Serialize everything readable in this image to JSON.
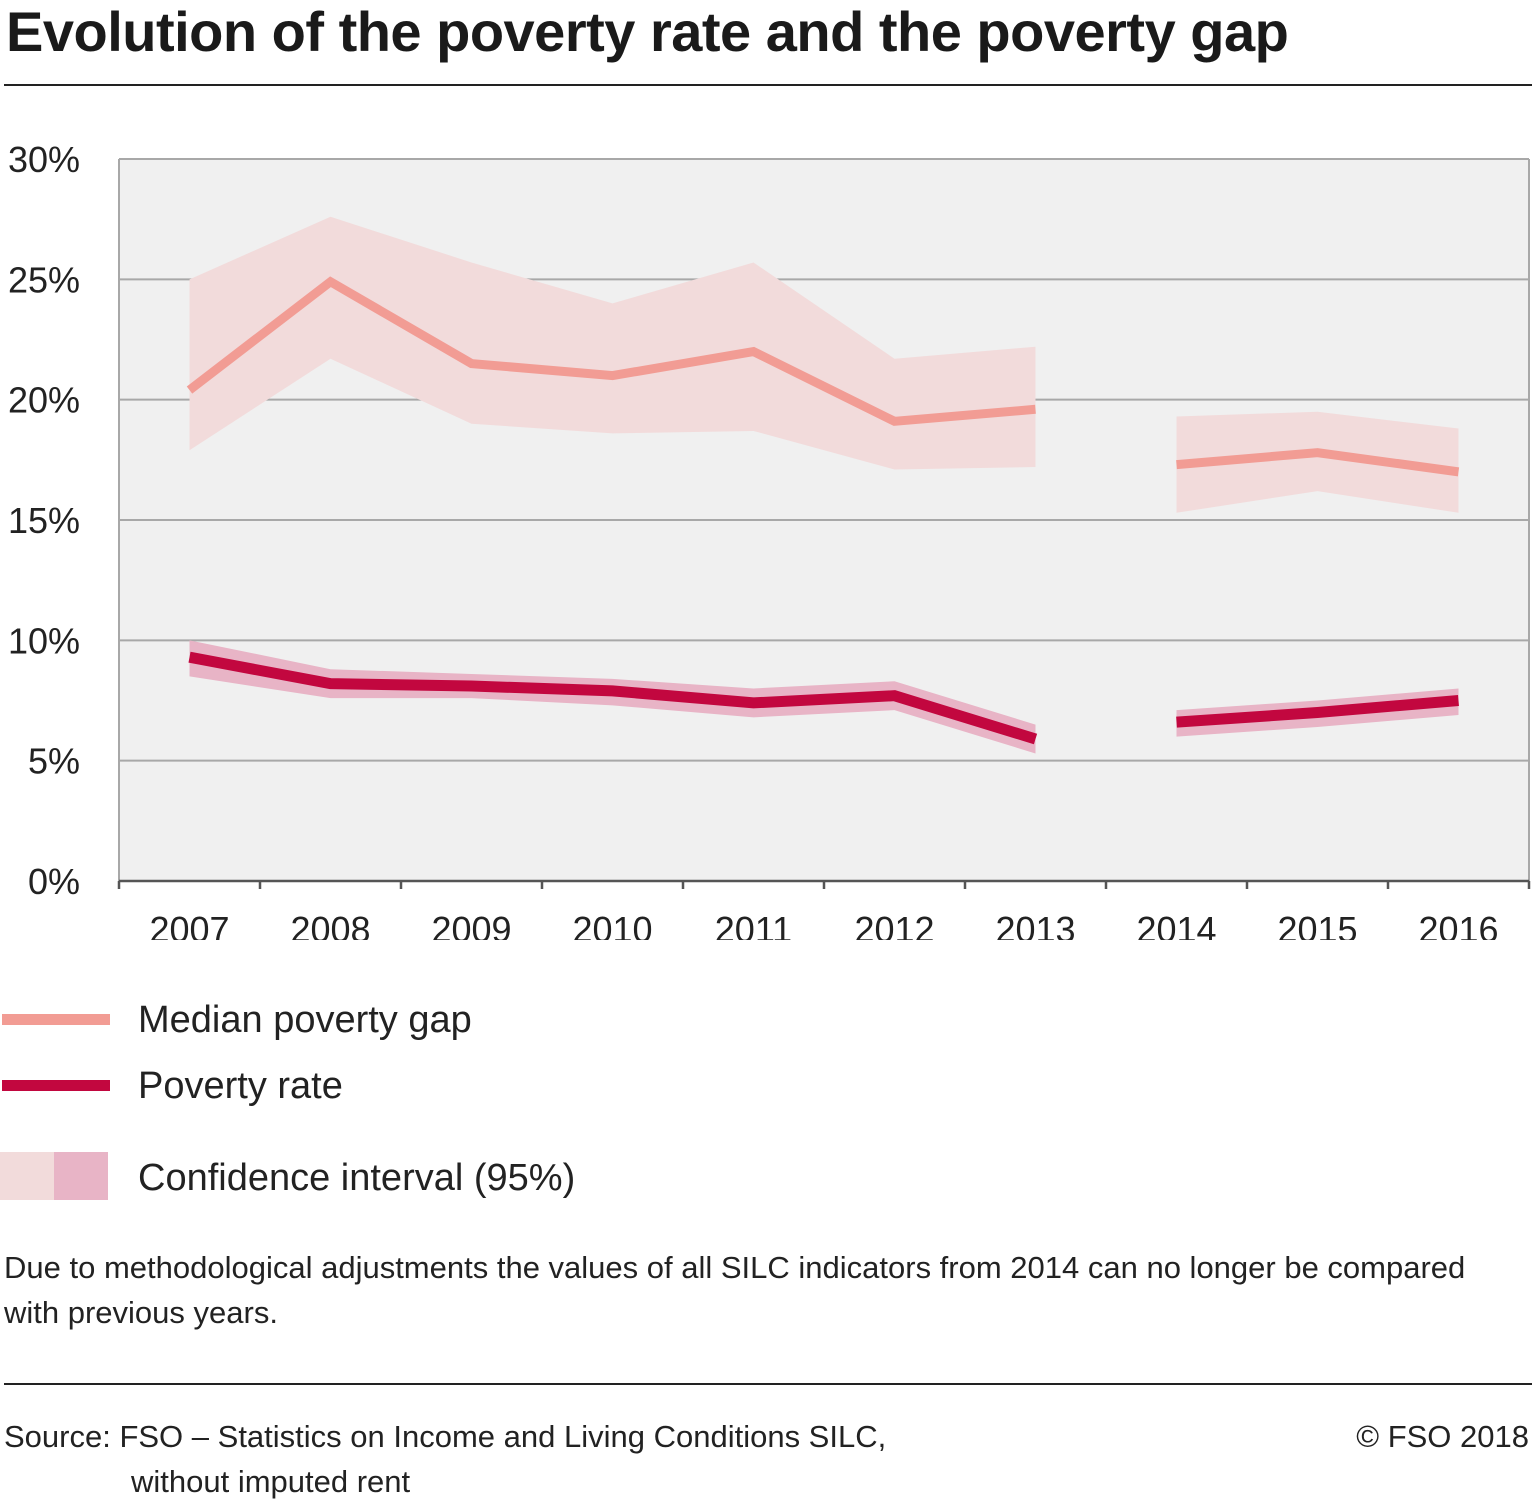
{
  "title": "Evolution of the poverty rate and the poverty gap",
  "colors": {
    "gap_line": "#f29c94",
    "gap_band": "#f2dbdb",
    "rate_line": "#c2073f",
    "rate_band": "#e8b4c6",
    "plot_bg": "#f0f0f0",
    "grid": "#a8a8a8"
  },
  "legend": {
    "gap": "Median poverty gap",
    "rate": "Poverty rate",
    "ci": "Confidence interval (95%)"
  },
  "note": "Due to methodological adjustments the values of all SILC indicators from 2014 can no longer be compared with previous years.",
  "source_line1": "Source: FSO – Statistics on Income and Living Conditions SILC,",
  "source_line2": "without imputed rent",
  "copyright": "© FSO 2018",
  "chart_data": {
    "type": "line",
    "categories": [
      "2007",
      "2008",
      "2009",
      "2010",
      "2011",
      "2012",
      "2013",
      "2014",
      "2015",
      "2016"
    ],
    "y_ticks": [
      "0%",
      "5%",
      "10%",
      "15%",
      "20%",
      "25%",
      "30%"
    ],
    "ylim": [
      0,
      30
    ],
    "grid": true,
    "legend_position": "bottom",
    "break_after": "2013",
    "series": [
      {
        "name": "Median poverty gap",
        "key": "gap",
        "values": [
          20.4,
          24.9,
          21.5,
          21.0,
          22.0,
          19.1,
          19.6,
          17.3,
          17.8,
          17.0
        ],
        "ci_lower": [
          17.9,
          21.7,
          19.0,
          18.6,
          18.7,
          17.1,
          17.2,
          15.3,
          16.2,
          15.3
        ],
        "ci_upper": [
          25.0,
          27.6,
          25.7,
          24.0,
          25.7,
          21.7,
          22.2,
          19.3,
          19.5,
          18.8
        ]
      },
      {
        "name": "Poverty rate",
        "key": "rate",
        "values": [
          9.3,
          8.2,
          8.1,
          7.9,
          7.4,
          7.7,
          5.9,
          6.6,
          7.0,
          7.5
        ],
        "ci_lower": [
          8.5,
          7.6,
          7.6,
          7.3,
          6.8,
          7.1,
          5.3,
          6.0,
          6.4,
          6.9
        ],
        "ci_upper": [
          10.0,
          8.8,
          8.6,
          8.4,
          8.0,
          8.3,
          6.5,
          7.1,
          7.5,
          8.0
        ]
      }
    ]
  }
}
